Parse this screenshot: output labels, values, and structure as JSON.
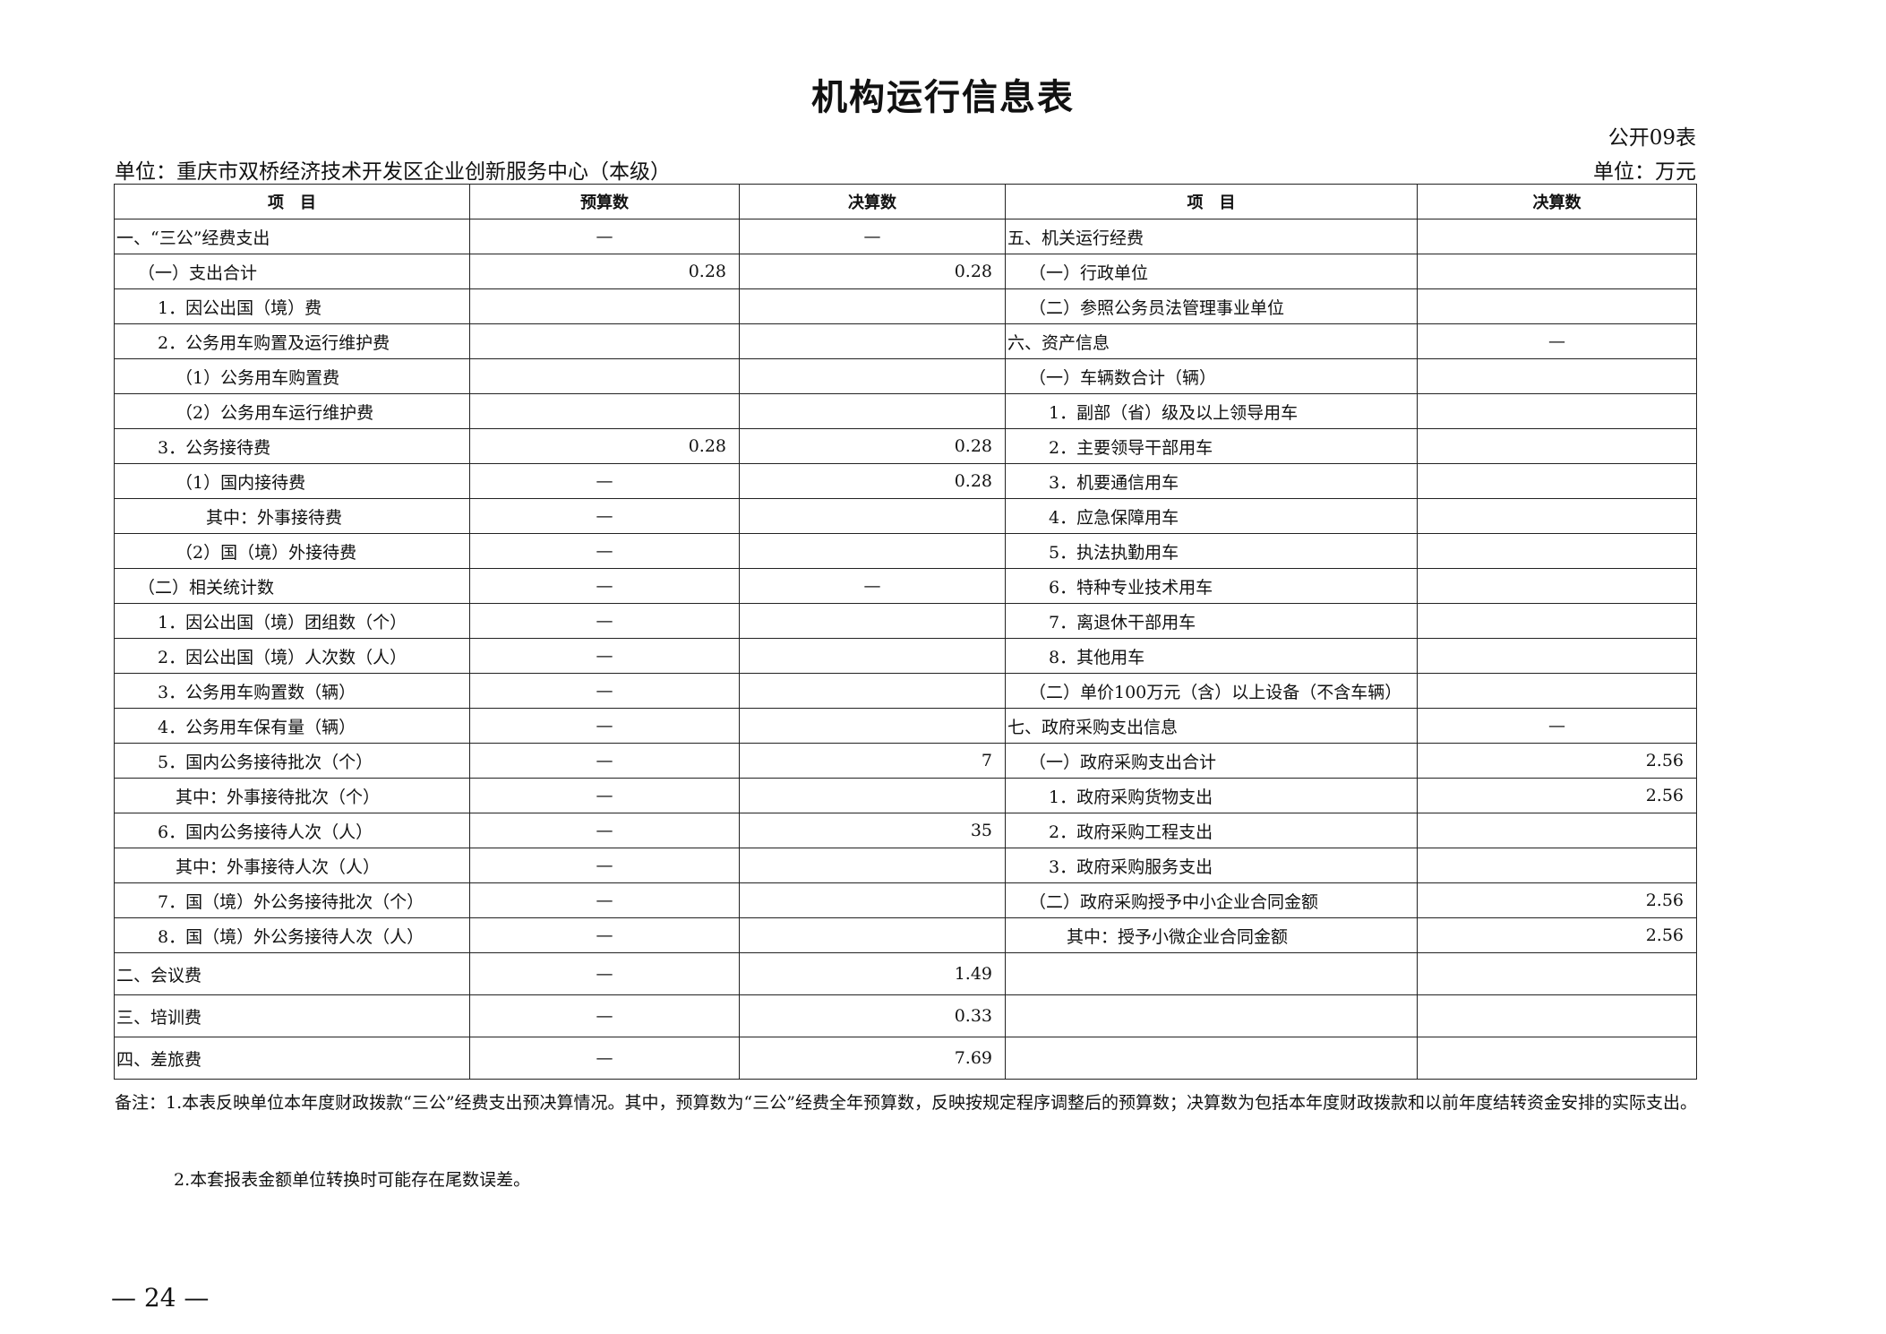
{
  "title": "机构运行信息表",
  "table_code": "公开09表",
  "unit_label": "单位：万元",
  "org_label": "单位：重庆市双桥经济技术开发区企业创新服务中心（本级）",
  "headers": {
    "left_item": "项　目",
    "left_budget": "预算数",
    "left_final": "决算数",
    "right_item": "项　目",
    "right_final": "决算数"
  },
  "rows": [
    {
      "l_item": "一、“三公”经费支出",
      "l_lvl": 0,
      "budget": "—",
      "final": "—",
      "r_item": "五、机关运行经费",
      "r_lvl": 0,
      "r_final": ""
    },
    {
      "l_item": "（一）支出合计",
      "l_lvl": 1,
      "budget": "0.28",
      "final": "0.28",
      "r_item": "（一）行政单位",
      "r_lvl": 1,
      "r_final": ""
    },
    {
      "l_item": "1．因公出国（境）费",
      "l_lvl": 2,
      "budget": "",
      "final": "",
      "r_item": "（二）参照公务员法管理事业单位",
      "r_lvl": 1,
      "r_final": ""
    },
    {
      "l_item": "2．公务用车购置及运行维护费",
      "l_lvl": 2,
      "budget": "",
      "final": "",
      "r_item": "六、资产信息",
      "r_lvl": 0,
      "r_final": "—"
    },
    {
      "l_item": "（1）公务用车购置费",
      "l_lvl": 3,
      "budget": "",
      "final": "",
      "r_item": "（一）车辆数合计（辆）",
      "r_lvl": 1,
      "r_final": ""
    },
    {
      "l_item": "（2）公务用车运行维护费",
      "l_lvl": 3,
      "budget": "",
      "final": "",
      "r_item": "1．副部（省）级及以上领导用车",
      "r_lvl": 2,
      "r_final": ""
    },
    {
      "l_item": "3．公务接待费",
      "l_lvl": 2,
      "budget": "0.28",
      "final": "0.28",
      "r_item": "2．主要领导干部用车",
      "r_lvl": 2,
      "r_final": ""
    },
    {
      "l_item": "（1）国内接待费",
      "l_lvl": 3,
      "budget": "—",
      "final": "0.28",
      "r_item": "3．机要通信用车",
      "r_lvl": 2,
      "r_final": ""
    },
    {
      "l_item": "其中：外事接待费",
      "l_lvl": 4,
      "budget": "—",
      "final": "",
      "r_item": "4．应急保障用车",
      "r_lvl": 2,
      "r_final": ""
    },
    {
      "l_item": "（2）国（境）外接待费",
      "l_lvl": 3,
      "budget": "—",
      "final": "",
      "r_item": "5．执法执勤用车",
      "r_lvl": 2,
      "r_final": ""
    },
    {
      "l_item": "（二）相关统计数",
      "l_lvl": 1,
      "budget": "—",
      "final": "—",
      "r_item": "6．特种专业技术用车",
      "r_lvl": 2,
      "r_final": ""
    },
    {
      "l_item": "1．因公出国（境）团组数（个）",
      "l_lvl": 2,
      "budget": "—",
      "final": "",
      "r_item": "7．离退休干部用车",
      "r_lvl": 2,
      "r_final": ""
    },
    {
      "l_item": "2．因公出国（境）人次数（人）",
      "l_lvl": 2,
      "budget": "—",
      "final": "",
      "r_item": "8．其他用车",
      "r_lvl": 2,
      "r_final": ""
    },
    {
      "l_item": "3．公务用车购置数（辆）",
      "l_lvl": 2,
      "budget": "—",
      "final": "",
      "r_item": "（二）单价100万元（含）以上设备（不含车辆）",
      "r_lvl": 1,
      "r_final": ""
    },
    {
      "l_item": "4．公务用车保有量（辆）",
      "l_lvl": 2,
      "budget": "—",
      "final": "",
      "r_item": "七、政府采购支出信息",
      "r_lvl": 0,
      "r_final": "—"
    },
    {
      "l_item": "5．国内公务接待批次（个）",
      "l_lvl": 2,
      "budget": "—",
      "final": "7",
      "r_item": "（一）政府采购支出合计",
      "r_lvl": 1,
      "r_final": "2.56"
    },
    {
      "l_item": "其中：外事接待批次（个）",
      "l_lvl": 3,
      "budget": "—",
      "final": "",
      "r_item": "1．政府采购货物支出",
      "r_lvl": 2,
      "r_final": "2.56"
    },
    {
      "l_item": "6．国内公务接待人次（人）",
      "l_lvl": 2,
      "budget": "—",
      "final": "35",
      "r_item": "2．政府采购工程支出",
      "r_lvl": 2,
      "r_final": ""
    },
    {
      "l_item": "其中：外事接待人次（人）",
      "l_lvl": 3,
      "budget": "—",
      "final": "",
      "r_item": "3．政府采购服务支出",
      "r_lvl": 2,
      "r_final": ""
    },
    {
      "l_item": "7．国（境）外公务接待批次（个）",
      "l_lvl": 2,
      "budget": "—",
      "final": "",
      "r_item": "（二）政府采购授予中小企业合同金额",
      "r_lvl": 1,
      "r_final": "2.56"
    },
    {
      "l_item": "8．国（境）外公务接待人次（人）",
      "l_lvl": 2,
      "budget": "—",
      "final": "",
      "r_item": "其中：授予小微企业合同金额",
      "r_lvl": 3,
      "r_final": "2.56"
    },
    {
      "l_item": "二、会议费",
      "l_lvl": 0,
      "budget": "—",
      "final": "1.49",
      "r_item": "",
      "r_lvl": 0,
      "r_final": "",
      "tall": true
    },
    {
      "l_item": "三、培训费",
      "l_lvl": 0,
      "budget": "—",
      "final": "0.33",
      "r_item": "",
      "r_lvl": 0,
      "r_final": "",
      "tall": true
    },
    {
      "l_item": "四、差旅费",
      "l_lvl": 0,
      "budget": "—",
      "final": "7.69",
      "r_item": "",
      "r_lvl": 0,
      "r_final": "",
      "tall": true
    }
  ],
  "notes": {
    "note1": "备注：1.本表反映单位本年度财政拨款“三公”经费支出预决算情况。其中，预算数为“三公”经费全年预算数，反映按规定程序调整后的预算数；决算数为包括本年度财政拨款和以前年度结转资金安排的实际支出。",
    "note2": "2.本套报表金额单位转换时可能存在尾数误差。"
  },
  "page_number": "— 24 —"
}
